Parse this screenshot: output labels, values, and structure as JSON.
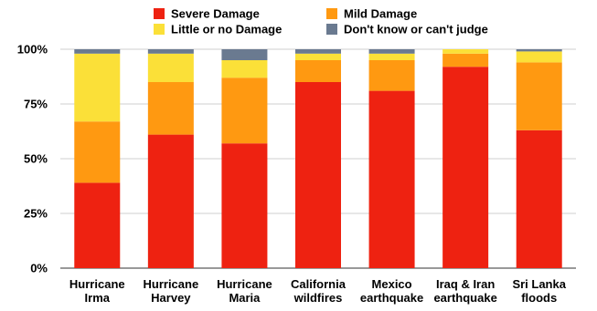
{
  "chart_data": {
    "type": "bar",
    "stacked": true,
    "title": "",
    "xlabel": "",
    "ylabel": "",
    "ylim": [
      0,
      100
    ],
    "y_ticks": [
      "0%",
      "25%",
      "50%",
      "75%",
      "100%"
    ],
    "grid": "horizontal",
    "legend_position": "top",
    "categories": [
      [
        "Hurricane",
        "Irma"
      ],
      [
        "Hurricane",
        "Harvey"
      ],
      [
        "Hurricane",
        "Maria"
      ],
      [
        "California",
        "wildfires"
      ],
      [
        "Mexico",
        "earthquake"
      ],
      [
        "Iraq & Iran",
        "earthquake"
      ],
      [
        "Sri Lanka",
        "floods"
      ]
    ],
    "series": [
      {
        "name": "Severe Damage",
        "color": "#EE2211",
        "values": [
          39,
          61,
          57,
          85,
          81,
          92,
          63
        ]
      },
      {
        "name": "Mild Damage",
        "color": "#FF9911",
        "values": [
          28,
          24,
          30,
          10,
          14,
          6,
          31
        ]
      },
      {
        "name": "Little or no Damage",
        "color": "#FBE038",
        "values": [
          31,
          13,
          8,
          3,
          3,
          2,
          5
        ]
      },
      {
        "name": "Don't know or can't judge",
        "color": "#6A7A90",
        "values": [
          2,
          2,
          5,
          2,
          2,
          0,
          1
        ]
      }
    ]
  }
}
